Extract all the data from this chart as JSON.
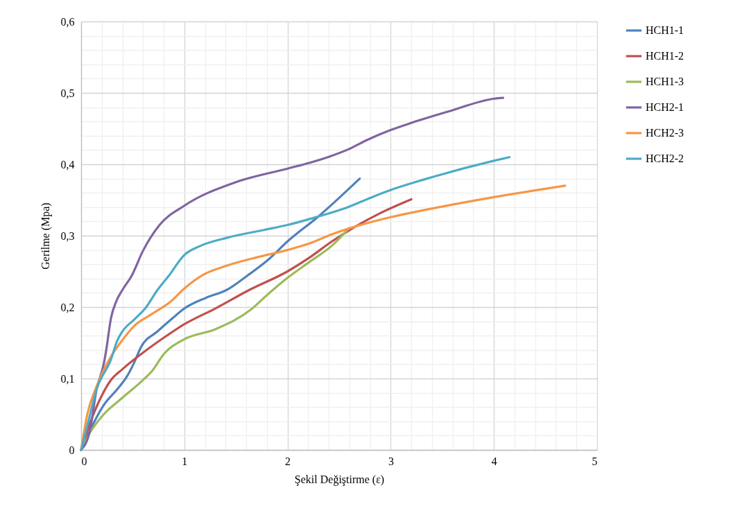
{
  "chart_data": {
    "type": "line",
    "xlabel": "Şekil Değiştirme (ε)",
    "ylabel": "Gerilme (Mpa)",
    "legend": "right",
    "grid": true,
    "marker": "none",
    "line_style": "solid",
    "xlim": [
      0,
      5
    ],
    "ylim": [
      0,
      0.6
    ],
    "xticks": [
      0,
      {
        "value": 0.2,
        "label": null
      },
      {
        "value": 0.4,
        "label": null
      },
      {
        "value": 0.6,
        "label": null
      },
      {
        "value": 0.8,
        "label": null
      },
      1,
      {
        "value": 1.2,
        "label": null
      },
      {
        "value": 1.4,
        "label": null
      },
      {
        "value": 1.6,
        "label": null
      },
      {
        "value": 1.8,
        "label": null
      },
      2,
      {
        "value": 2.2,
        "label": null
      },
      {
        "value": 2.4,
        "label": null
      },
      {
        "value": 2.6,
        "label": null
      },
      {
        "value": 2.8,
        "label": null
      },
      3,
      {
        "value": 3.2,
        "label": null
      },
      {
        "value": 3.4,
        "label": null
      },
      {
        "value": 3.6,
        "label": null
      },
      {
        "value": 3.8,
        "label": null
      },
      4,
      {
        "value": 4.2,
        "label": null
      },
      {
        "value": 4.4,
        "label": null
      },
      {
        "value": 4.6,
        "label": null
      },
      {
        "value": 4.8,
        "label": null
      },
      5
    ],
    "yticks": [
      0,
      {
        "value": 0.02,
        "label": null
      },
      {
        "value": 0.04,
        "label": null
      },
      {
        "value": 0.06,
        "label": null
      },
      {
        "value": 0.08,
        "label": null
      },
      {
        "value": 0.1,
        "label": "0,1"
      },
      {
        "value": 0.12,
        "label": null
      },
      {
        "value": 0.14,
        "label": null
      },
      {
        "value": 0.16,
        "label": null
      },
      {
        "value": 0.18,
        "label": null
      },
      {
        "value": 0.2,
        "label": "0,2"
      },
      {
        "value": 0.22,
        "label": null
      },
      {
        "value": 0.24,
        "label": null
      },
      {
        "value": 0.26,
        "label": null
      },
      {
        "value": 0.28,
        "label": null
      },
      {
        "value": 0.3,
        "label": "0,3"
      },
      {
        "value": 0.32,
        "label": null
      },
      {
        "value": 0.34,
        "label": null
      },
      {
        "value": 0.36,
        "label": null
      },
      {
        "value": 0.38,
        "label": null
      },
      {
        "value": 0.4,
        "label": "0,4"
      },
      {
        "value": 0.42,
        "label": null
      },
      {
        "value": 0.44,
        "label": null
      },
      {
        "value": 0.46,
        "label": null
      },
      {
        "value": 0.48,
        "label": null
      },
      {
        "value": 0.5,
        "label": "0,5"
      },
      {
        "value": 0.52,
        "label": null
      },
      {
        "value": 0.54,
        "label": null
      },
      {
        "value": 0.56,
        "label": null
      },
      {
        "value": 0.58,
        "label": null
      },
      {
        "value": 0.6,
        "label": "0,6"
      }
    ],
    "series": [
      {
        "name": "HCH1-1",
        "color": "#4f81bd",
        "x": [
          0,
          0.085,
          0.22,
          0.35,
          0.44,
          0.51,
          0.58,
          0.74,
          0.89,
          1.0,
          1.21,
          1.41,
          1.61,
          1.81,
          2.0,
          2.3,
          2.7
        ],
        "values": [
          0,
          0.027,
          0.063,
          0.085,
          0.102,
          0.121,
          0.144,
          0.166,
          0.185,
          0.198,
          0.213,
          0.224,
          0.244,
          0.266,
          0.292,
          0.327,
          0.38
        ]
      },
      {
        "name": "HCH1-2",
        "color": "#c0504d",
        "x": [
          0,
          0.085,
          0.2,
          0.29,
          0.4,
          0.58,
          0.8,
          1.0,
          1.3,
          1.63,
          2.0,
          2.21,
          2.43,
          2.66,
          2.89,
          3.2
        ],
        "values": [
          0,
          0.037,
          0.076,
          0.098,
          0.113,
          0.134,
          0.157,
          0.176,
          0.198,
          0.224,
          0.25,
          0.269,
          0.292,
          0.313,
          0.331,
          0.351
        ]
      },
      {
        "name": "HCH1-3",
        "color": "#9bbb59",
        "x": [
          0,
          0.085,
          0.22,
          0.4,
          0.6,
          0.69,
          0.8,
          1.0,
          1.3,
          1.65,
          1.81,
          2.0,
          2.21,
          2.43,
          2.6
        ],
        "values": [
          0,
          0.024,
          0.05,
          0.073,
          0.098,
          0.111,
          0.134,
          0.155,
          0.169,
          0.197,
          0.218,
          0.241,
          0.263,
          0.286,
          0.311
        ]
      },
      {
        "name": "HCH2-1",
        "color": "#8064a2",
        "x": [
          0,
          0.085,
          0.15,
          0.22,
          0.24,
          0.29,
          0.34,
          0.4,
          0.49,
          0.6,
          0.76,
          1.0,
          1.5,
          2.0,
          2.21,
          2.41,
          2.59,
          2.77,
          3.0,
          3.2,
          3.56,
          4.01,
          4.09
        ],
        "values": [
          0,
          0.027,
          0.085,
          0.121,
          0.137,
          0.185,
          0.208,
          0.224,
          0.244,
          0.279,
          0.315,
          0.342,
          0.375,
          0.394,
          0.402,
          0.411,
          0.421,
          0.434,
          0.448,
          0.458,
          0.474,
          0.492,
          0.493
        ]
      },
      {
        "name": "HCH2-3",
        "color": "#f79646",
        "x": [
          0,
          0.06,
          0.15,
          0.29,
          0.38,
          0.51,
          0.67,
          0.87,
          1.0,
          1.18,
          1.41,
          1.74,
          2.0,
          2.21,
          2.43,
          2.66,
          3.0,
          3.33,
          4.0,
          4.69
        ],
        "values": [
          0,
          0.05,
          0.089,
          0.131,
          0.15,
          0.173,
          0.189,
          0.208,
          0.226,
          0.245,
          0.258,
          0.271,
          0.28,
          0.289,
          0.302,
          0.313,
          0.326,
          0.336,
          0.354,
          0.37
        ]
      },
      {
        "name": "HCH2-2",
        "color": "#4bacc6",
        "x": [
          0,
          0.06,
          0.15,
          0.29,
          0.35,
          0.4,
          0.51,
          0.62,
          0.74,
          0.85,
          1.0,
          1.16,
          1.41,
          1.77,
          2.0,
          2.3,
          2.55,
          2.77,
          3.0,
          3.33,
          4.0,
          4.15
        ],
        "values": [
          0,
          0.034,
          0.085,
          0.127,
          0.153,
          0.166,
          0.182,
          0.198,
          0.224,
          0.244,
          0.273,
          0.286,
          0.297,
          0.308,
          0.315,
          0.327,
          0.338,
          0.351,
          0.364,
          0.379,
          0.405,
          0.41
        ]
      }
    ]
  }
}
